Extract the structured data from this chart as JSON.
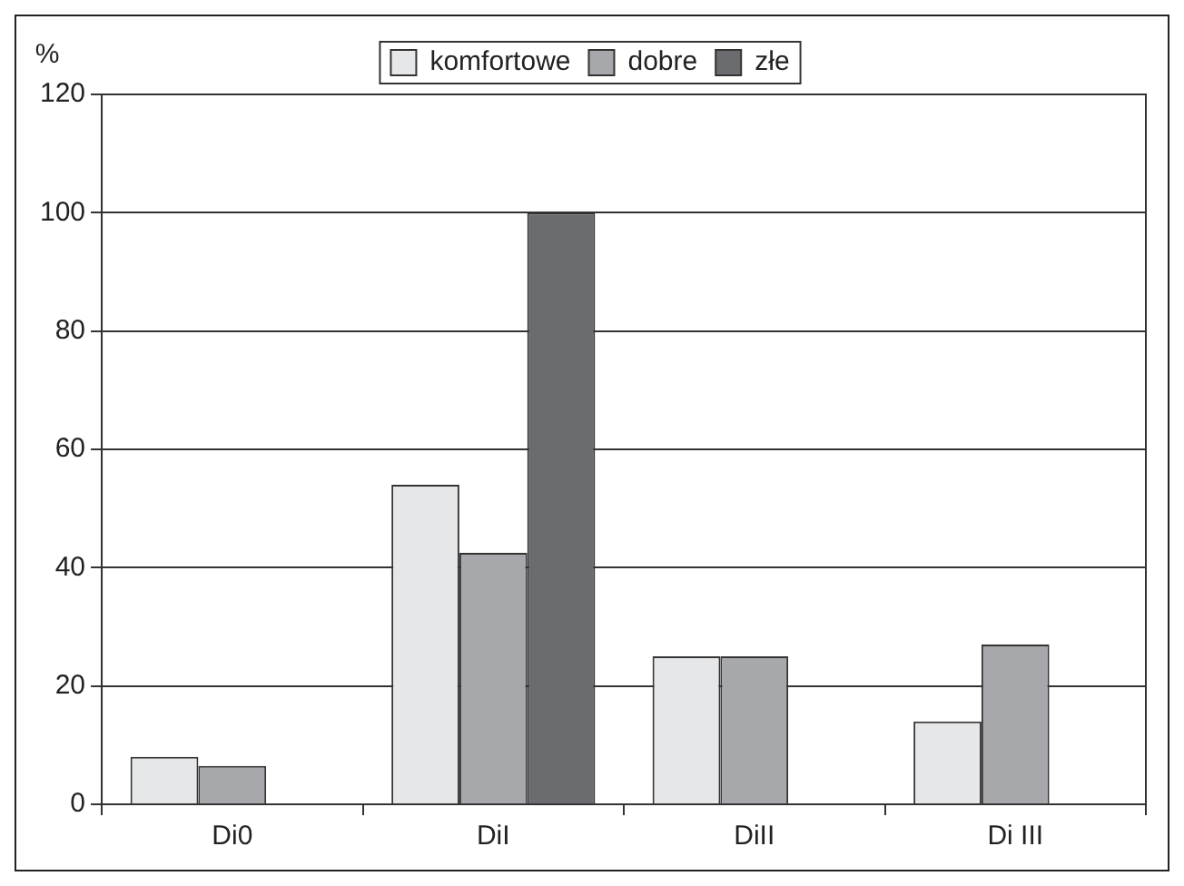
{
  "chart_data": {
    "type": "bar",
    "ylabel": "%",
    "categories": [
      "Di0",
      "DiI",
      "DiII",
      "Di III"
    ],
    "series": [
      {
        "name": "komfortowe",
        "color": "#e6e7e9",
        "values": [
          8,
          54,
          25,
          14
        ]
      },
      {
        "name": "dobre",
        "color": "#a7a8ab",
        "values": [
          6.5,
          42.5,
          25,
          27
        ]
      },
      {
        "name": "złe",
        "color": "#6b6c70",
        "values": [
          null,
          100,
          null,
          null
        ]
      }
    ],
    "ylim": [
      0,
      120
    ],
    "yticks": [
      0,
      20,
      40,
      60,
      80,
      100,
      120
    ],
    "grid": "y",
    "legend": "top"
  }
}
